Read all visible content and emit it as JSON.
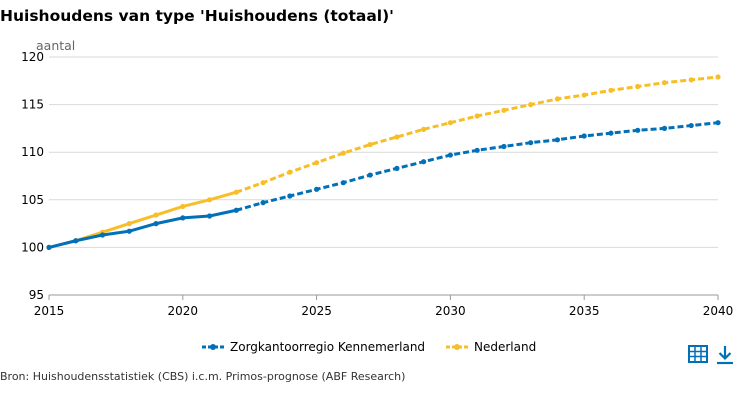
{
  "title": "Huishoudens van type 'Huishoudens (totaal)'",
  "source": "Bron: Huishoudensstatistiek (CBS) i.c.m. Primos-prognose (ABF Research)",
  "icons": {
    "table": "table-icon",
    "download": "download-icon"
  },
  "colors": {
    "blue": "#0070b8",
    "yellow": "#f8be28",
    "grid": "#d9d9d9",
    "axis": "#999999"
  },
  "chart_data": {
    "type": "line",
    "ylabel": "aantal",
    "xlabel": "",
    "xlim": [
      2015,
      2040
    ],
    "ylim": [
      95,
      120
    ],
    "xticks": [
      2015,
      2020,
      2025,
      2030,
      2035,
      2040
    ],
    "yticks": [
      95,
      100,
      105,
      110,
      115,
      120
    ],
    "grid": true,
    "legend_position": "bottom",
    "series": [
      {
        "name": "Zorgkantoorregio Kennemerland",
        "color": "#0070b8",
        "solid_until": 2022,
        "x": [
          2015,
          2016,
          2017,
          2018,
          2019,
          2020,
          2021,
          2022,
          2023,
          2024,
          2025,
          2026,
          2027,
          2028,
          2029,
          2030,
          2031,
          2032,
          2033,
          2034,
          2035,
          2036,
          2037,
          2038,
          2039,
          2040
        ],
        "y": [
          100.0,
          100.7,
          101.3,
          101.7,
          102.5,
          103.1,
          103.3,
          103.9,
          104.7,
          105.4,
          106.1,
          106.8,
          107.6,
          108.3,
          109.0,
          109.7,
          110.2,
          110.6,
          111.0,
          111.3,
          111.7,
          112.0,
          112.3,
          112.5,
          112.8,
          113.1
        ]
      },
      {
        "name": "Nederland",
        "color": "#f8be28",
        "solid_until": 2022,
        "x": [
          2015,
          2016,
          2017,
          2018,
          2019,
          2020,
          2021,
          2022,
          2023,
          2024,
          2025,
          2026,
          2027,
          2028,
          2029,
          2030,
          2031,
          2032,
          2033,
          2034,
          2035,
          2036,
          2037,
          2038,
          2039,
          2040
        ],
        "y": [
          100.0,
          100.7,
          101.6,
          102.5,
          103.4,
          104.3,
          105.0,
          105.8,
          106.8,
          107.9,
          108.9,
          109.9,
          110.8,
          111.6,
          112.4,
          113.1,
          113.8,
          114.4,
          115.0,
          115.6,
          116.0,
          116.5,
          116.9,
          117.3,
          117.6,
          117.9
        ]
      }
    ]
  }
}
